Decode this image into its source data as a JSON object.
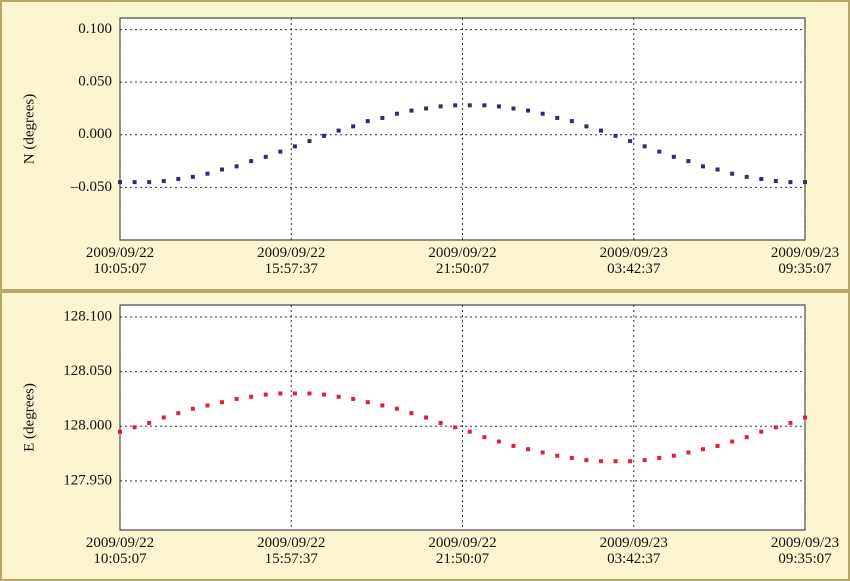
{
  "chart_data": [
    {
      "type": "scatter",
      "y_label": "N (degrees)",
      "color": "#2a2f6e",
      "grid": true,
      "xlim": [
        0,
        23.5
      ],
      "ylim": [
        -0.1,
        0.111
      ],
      "xticks": [
        {
          "value": 0,
          "label": "2009/09/22\n10:05:07"
        },
        {
          "value": 5.875,
          "label": "2009/09/22\n15:57:37"
        },
        {
          "value": 11.75,
          "label": "2009/09/22\n21:50:07"
        },
        {
          "value": 17.625,
          "label": "2009/09/23\n03:42:37"
        },
        {
          "value": 23.5,
          "label": "2009/09/23\n09:35:07"
        }
      ],
      "yticks": [
        {
          "value": 0.1,
          "label": "0.100"
        },
        {
          "value": 0.05,
          "label": "0.050"
        },
        {
          "value": 0,
          "label": "0.000"
        },
        {
          "value": -0.05,
          "label": "–0.050"
        }
      ],
      "x": [
        0,
        0.5,
        1,
        1.5,
        2,
        2.5,
        3,
        3.5,
        4,
        4.5,
        5,
        5.5,
        6,
        6.5,
        7,
        7.5,
        8,
        8.5,
        9,
        9.5,
        10,
        10.5,
        11,
        11.5,
        12,
        12.5,
        13,
        13.5,
        14,
        14.5,
        15,
        15.5,
        16,
        16.5,
        17,
        17.5,
        18,
        18.5,
        19,
        19.5,
        20,
        20.5,
        21,
        21.5,
        22,
        22.5,
        23,
        23.5
      ],
      "values": [
        -0.045,
        -0.045,
        -0.045,
        -0.044,
        -0.042,
        -0.04,
        -0.037,
        -0.033,
        -0.03,
        -0.025,
        -0.021,
        -0.016,
        -0.011,
        -0.006,
        -0.001,
        0.004,
        0.008,
        0.013,
        0.016,
        0.02,
        0.023,
        0.025,
        0.027,
        0.028,
        0.028,
        0.028,
        0.027,
        0.025,
        0.023,
        0.02,
        0.016,
        0.013,
        0.008,
        0.004,
        -0.001,
        -0.006,
        -0.011,
        -0.016,
        -0.021,
        -0.025,
        -0.03,
        -0.033,
        -0.037,
        -0.04,
        -0.042,
        -0.044,
        -0.045,
        -0.045
      ]
    },
    {
      "type": "scatter",
      "y_label": "E (degrees)",
      "color": "#e0203a",
      "grid": true,
      "xlim": [
        0,
        23.5
      ],
      "ylim": [
        127.905,
        128.111
      ],
      "xticks": [
        {
          "value": 0,
          "label": "2009/09/22\n10:05:07"
        },
        {
          "value": 5.875,
          "label": "2009/09/22\n15:57:37"
        },
        {
          "value": 11.75,
          "label": "2009/09/22\n21:50:07"
        },
        {
          "value": 17.625,
          "label": "2009/09/23\n03:42:37"
        },
        {
          "value": 23.5,
          "label": "2009/09/23\n09:35:07"
        }
      ],
      "yticks": [
        {
          "value": 128.1,
          "label": "128.100"
        },
        {
          "value": 128.05,
          "label": "128.050"
        },
        {
          "value": 128,
          "label": "128.000"
        },
        {
          "value": 127.95,
          "label": "127.950"
        }
      ],
      "x": [
        0,
        0.5,
        1,
        1.5,
        2,
        2.5,
        3,
        3.5,
        4,
        4.5,
        5,
        5.5,
        6,
        6.5,
        7,
        7.5,
        8,
        8.5,
        9,
        9.5,
        10,
        10.5,
        11,
        11.5,
        12,
        12.5,
        13,
        13.5,
        14,
        14.5,
        15,
        15.5,
        16,
        16.5,
        17,
        17.5,
        18,
        18.5,
        19,
        19.5,
        20,
        20.5,
        21,
        21.5,
        22,
        22.5,
        23,
        23.5
      ],
      "values": [
        127.995,
        127.999,
        128.003,
        128.008,
        128.012,
        128.016,
        128.019,
        128.022,
        128.025,
        128.027,
        128.029,
        128.03,
        128.03,
        128.03,
        128.029,
        128.027,
        128.025,
        128.022,
        128.019,
        128.016,
        128.012,
        128.008,
        128.003,
        127.999,
        127.995,
        127.99,
        127.986,
        127.982,
        127.979,
        127.976,
        127.973,
        127.971,
        127.969,
        127.968,
        127.968,
        127.968,
        127.969,
        127.971,
        127.973,
        127.976,
        127.979,
        127.982,
        127.986,
        127.99,
        127.995,
        127.999,
        128.003,
        128.008
      ]
    }
  ]
}
